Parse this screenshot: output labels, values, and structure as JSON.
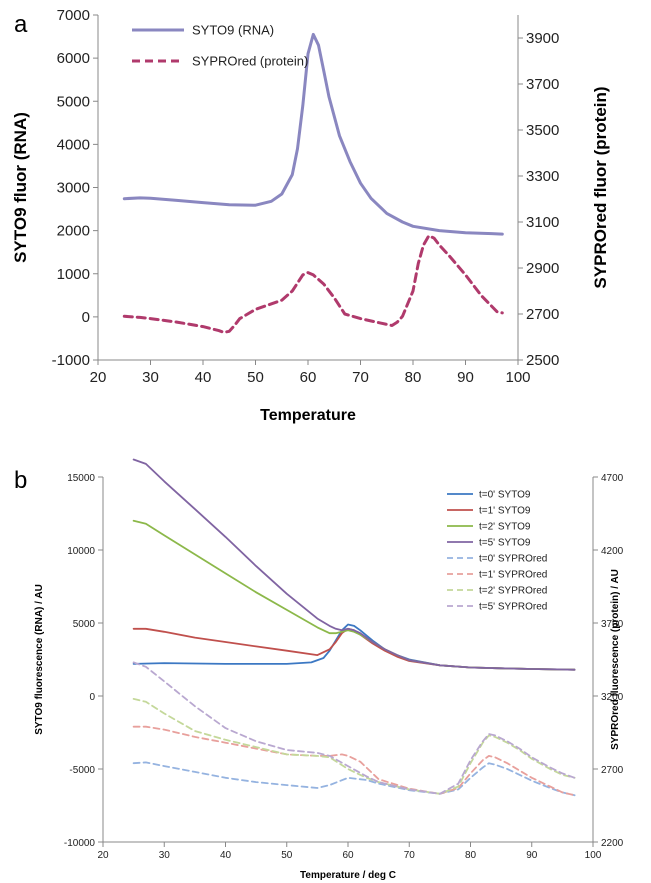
{
  "panels": [
    {
      "label": "a"
    },
    {
      "label": "b"
    }
  ],
  "chart_data": [
    {
      "type": "line",
      "panel": "a",
      "title": "",
      "xlabel": "Temperature",
      "ylabel": "SYTO9 fluor (RNA)",
      "y2label": "SYPROred fluor (protein)",
      "xlim": [
        20,
        100
      ],
      "ylim": [
        -1000,
        7000
      ],
      "y2lim": [
        2500,
        4000
      ],
      "x_ticks": [
        "20",
        "30",
        "40",
        "50",
        "60",
        "70",
        "80",
        "90",
        "100"
      ],
      "y_ticks": [
        "-1000",
        "0",
        "1000",
        "2000",
        "3000",
        "4000",
        "5000",
        "6000",
        "7000"
      ],
      "y2_ticks": [
        "2500",
        "2700",
        "2900",
        "3100",
        "3300",
        "3500",
        "3700",
        "3900"
      ],
      "grid": false,
      "legend_position": "top-left",
      "series": [
        {
          "name": "SYTO9 (RNA)",
          "axis": "left",
          "style": "solid",
          "color": "#8a87c0",
          "x": [
            25,
            28,
            30,
            35,
            40,
            45,
            50,
            53,
            55,
            57,
            58,
            59,
            60,
            61,
            62,
            63,
            64,
            66,
            68,
            70,
            72,
            75,
            78,
            80,
            85,
            90,
            95,
            97
          ],
          "y": [
            2740,
            2760,
            2750,
            2700,
            2650,
            2600,
            2590,
            2680,
            2850,
            3300,
            3900,
            4900,
            6100,
            6550,
            6300,
            5700,
            5100,
            4200,
            3600,
            3100,
            2750,
            2400,
            2200,
            2100,
            2000,
            1950,
            1930,
            1920
          ]
        },
        {
          "name": "SYPROred (protein)",
          "axis": "right",
          "style": "dashed",
          "color": "#b03a6c",
          "x": [
            25,
            28,
            30,
            35,
            40,
            43,
            44,
            45,
            46,
            47,
            50,
            55,
            57,
            59,
            60,
            61,
            63,
            65,
            67,
            70,
            73,
            75,
            76,
            77,
            78,
            80,
            81,
            82,
            83,
            84,
            85,
            87,
            90,
            93,
            96,
            97
          ],
          "y": [
            2690,
            2685,
            2680,
            2665,
            2645,
            2628,
            2620,
            2625,
            2650,
            2680,
            2720,
            2760,
            2800,
            2870,
            2880,
            2870,
            2830,
            2770,
            2700,
            2680,
            2665,
            2655,
            2650,
            2665,
            2690,
            2800,
            2920,
            3000,
            3040,
            3030,
            3000,
            2950,
            2870,
            2780,
            2710,
            2705
          ]
        }
      ]
    },
    {
      "type": "line",
      "panel": "b",
      "title": "",
      "xlabel": "Temperature  / deg C",
      "ylabel": "SYTO9 fluorescence (RNA) / AU",
      "y2label": "SYPROred fluorescence (protein) / AU",
      "xlim": [
        20,
        100
      ],
      "ylim": [
        -10000,
        15000
      ],
      "y2lim": [
        2200,
        4700
      ],
      "x_ticks": [
        "20",
        "30",
        "40",
        "50",
        "60",
        "70",
        "80",
        "90",
        "100"
      ],
      "y_ticks": [
        "-10000",
        "-5000",
        "0",
        "5000",
        "10000",
        "15000"
      ],
      "y2_ticks": [
        "2200",
        "2700",
        "3200",
        "3700",
        "4200",
        "4700"
      ],
      "grid": false,
      "legend_position": "top-right",
      "series": [
        {
          "name": "t=0' SYTO9",
          "axis": "left",
          "style": "solid",
          "color": "#3c78c3",
          "x": [
            25,
            30,
            40,
            50,
            54,
            56,
            57,
            58,
            59,
            60,
            61,
            62,
            64,
            66,
            68,
            70,
            75,
            80,
            85,
            90,
            97
          ],
          "y": [
            2200,
            2250,
            2200,
            2200,
            2300,
            2600,
            3100,
            3800,
            4500,
            4900,
            4800,
            4500,
            3800,
            3200,
            2800,
            2500,
            2100,
            1950,
            1900,
            1850,
            1800
          ]
        },
        {
          "name": "t=1' SYTO9",
          "axis": "left",
          "style": "solid",
          "color": "#c0504d",
          "x": [
            25,
            27,
            30,
            35,
            40,
            45,
            50,
            55,
            57,
            58,
            59,
            60,
            61,
            62,
            64,
            66,
            68,
            70,
            75,
            80,
            85,
            90,
            97
          ],
          "y": [
            4600,
            4600,
            4400,
            4000,
            3700,
            3400,
            3100,
            2800,
            3200,
            3700,
            4300,
            4600,
            4500,
            4200,
            3600,
            3100,
            2700,
            2400,
            2100,
            1950,
            1900,
            1850,
            1800
          ]
        },
        {
          "name": "t=2' SYTO9",
          "axis": "left",
          "style": "solid",
          "color": "#8cb84a",
          "x": [
            25,
            27,
            30,
            35,
            40,
            45,
            50,
            55,
            57,
            58,
            59,
            60,
            61,
            62,
            64,
            66,
            68,
            70,
            75,
            80,
            85,
            90,
            97
          ],
          "y": [
            12000,
            11800,
            11000,
            9700,
            8400,
            7100,
            5900,
            4700,
            4300,
            4300,
            4400,
            4500,
            4400,
            4200,
            3700,
            3200,
            2800,
            2450,
            2100,
            1950,
            1900,
            1850,
            1800
          ]
        },
        {
          "name": "t=5' SYTO9",
          "axis": "left",
          "style": "solid",
          "color": "#8064a2",
          "x": [
            25,
            27,
            30,
            35,
            40,
            45,
            50,
            55,
            57,
            58,
            59,
            60,
            61,
            62,
            64,
            66,
            68,
            70,
            75,
            80,
            85,
            90,
            97
          ],
          "y": [
            16200,
            15900,
            14700,
            12800,
            10900,
            8900,
            7000,
            5300,
            4800,
            4600,
            4500,
            4600,
            4500,
            4300,
            3700,
            3200,
            2800,
            2450,
            2100,
            1950,
            1900,
            1850,
            1800
          ]
        },
        {
          "name": "t=0' SYPROred",
          "axis": "right",
          "style": "dashed",
          "color": "#95b3e0",
          "x": [
            25,
            27,
            30,
            35,
            40,
            45,
            50,
            55,
            57,
            60,
            63,
            65,
            70,
            75,
            78,
            80,
            82,
            83,
            84,
            86,
            88,
            90,
            93,
            95,
            97
          ],
          "y": [
            2740,
            2745,
            2720,
            2680,
            2640,
            2610,
            2590,
            2570,
            2590,
            2640,
            2625,
            2600,
            2555,
            2530,
            2560,
            2640,
            2710,
            2740,
            2730,
            2700,
            2660,
            2620,
            2570,
            2540,
            2520
          ]
        },
        {
          "name": "t=1' SYPROred",
          "axis": "right",
          "style": "dashed",
          "color": "#e8a09c",
          "x": [
            25,
            27,
            30,
            35,
            40,
            45,
            50,
            55,
            57,
            59,
            60,
            62,
            65,
            70,
            75,
            78,
            80,
            82,
            83,
            84,
            86,
            88,
            90,
            93,
            95,
            97
          ],
          "y": [
            2990,
            2990,
            2970,
            2920,
            2880,
            2840,
            2800,
            2790,
            2790,
            2800,
            2790,
            2750,
            2630,
            2565,
            2530,
            2570,
            2670,
            2760,
            2790,
            2780,
            2740,
            2690,
            2640,
            2580,
            2540,
            2520
          ]
        },
        {
          "name": "t=2' SYPROred",
          "axis": "right",
          "style": "dashed",
          "color": "#c4d89a",
          "x": [
            25,
            27,
            30,
            35,
            40,
            45,
            50,
            55,
            57,
            60,
            63,
            65,
            70,
            75,
            78,
            80,
            82,
            83,
            84,
            86,
            88,
            90,
            93,
            95,
            97
          ],
          "y": [
            3180,
            3160,
            3080,
            2960,
            2900,
            2850,
            2800,
            2790,
            2780,
            2700,
            2640,
            2610,
            2560,
            2530,
            2580,
            2740,
            2880,
            2930,
            2920,
            2880,
            2830,
            2770,
            2700,
            2660,
            2640
          ]
        },
        {
          "name": "t=5' SYPROred",
          "axis": "right",
          "style": "dashed",
          "color": "#b9a8d0",
          "x": [
            25,
            27,
            30,
            35,
            40,
            45,
            50,
            55,
            57,
            60,
            63,
            65,
            70,
            75,
            78,
            80,
            82,
            83,
            84,
            86,
            88,
            90,
            93,
            95,
            97
          ],
          "y": [
            3430,
            3400,
            3300,
            3130,
            2980,
            2890,
            2830,
            2810,
            2790,
            2720,
            2650,
            2610,
            2560,
            2530,
            2600,
            2760,
            2890,
            2940,
            2930,
            2890,
            2840,
            2780,
            2710,
            2670,
            2640
          ]
        }
      ]
    }
  ]
}
